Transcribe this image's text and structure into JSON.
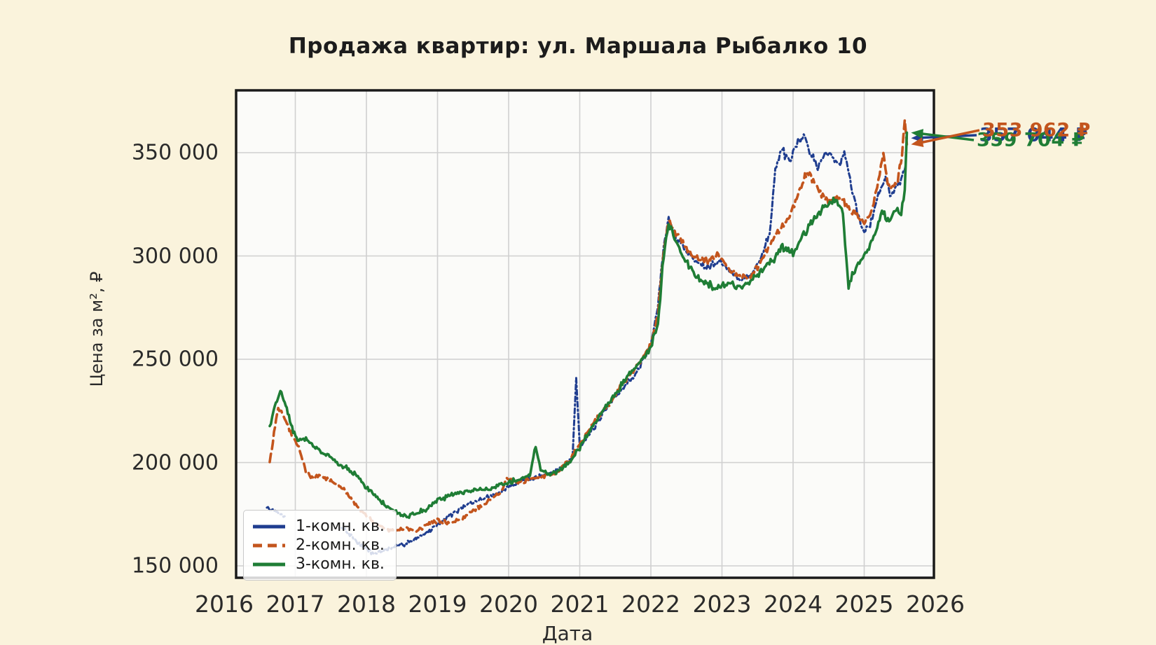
{
  "title": "Продажа квартир: ул. Маршала Рыбалко 10",
  "colors": {
    "page_background": "#faf3dc",
    "plot_background": "#fbfbf9",
    "grid": "#d0d0d0",
    "axis_spine": "#1a1a1a",
    "tick_text": "#2a2a2a",
    "series_1room": "#1f3d8f",
    "series_2room": "#c3551d",
    "series_3room": "#1f7d35"
  },
  "chart_data": {
    "type": "line",
    "title": "Продажа квартир: ул. Маршала Рыбалко 10",
    "xlabel": "Дата",
    "ylabel": "Цена за м², ₽",
    "grid": true,
    "legend_position": "lower left",
    "xlim": [
      2016.17,
      2026.03
    ],
    "ylim": [
      144000,
      380000
    ],
    "x_ticks": [
      2016,
      2017,
      2018,
      2019,
      2020,
      2021,
      2022,
      2023,
      2024,
      2025,
      2026
    ],
    "y_ticks": {
      "values": [
        150000,
        200000,
        250000,
        300000,
        350000
      ],
      "labels": [
        "150 000",
        "200 000",
        "250 000",
        "300 000",
        "350 000"
      ]
    },
    "series": [
      {
        "name": "1-комн. кв.",
        "color": "#1f3d8f",
        "style": "dashdot",
        "last_price_label": "357 044 ₽",
        "points": [
          [
            2016.6,
            178000
          ],
          [
            2016.7,
            176500
          ],
          [
            2016.85,
            174000
          ],
          null,
          [
            2017.65,
            169000
          ],
          [
            2017.8,
            164000
          ],
          [
            2017.95,
            159000
          ],
          [
            2018.1,
            156000
          ],
          [
            2018.25,
            157500
          ],
          [
            2018.4,
            159000
          ],
          [
            2018.55,
            161000
          ],
          [
            2018.7,
            163500
          ],
          [
            2018.85,
            166000
          ],
          [
            2019.0,
            170000
          ],
          [
            2019.15,
            174000
          ],
          [
            2019.3,
            177000
          ],
          [
            2019.45,
            180000
          ],
          [
            2019.6,
            182000
          ],
          [
            2019.75,
            184000
          ],
          [
            2019.9,
            186000
          ],
          [
            2020.0,
            188000
          ],
          [
            2020.15,
            191000
          ],
          [
            2020.3,
            192000
          ],
          [
            2020.45,
            193500
          ],
          [
            2020.6,
            195000
          ],
          [
            2020.75,
            198000
          ],
          [
            2020.9,
            203000
          ],
          [
            2020.95,
            242000
          ],
          [
            2021.0,
            208000
          ],
          [
            2021.15,
            214000
          ],
          [
            2021.3,
            222000
          ],
          [
            2021.45,
            230000
          ],
          [
            2021.6,
            236000
          ],
          [
            2021.75,
            241000
          ],
          [
            2021.9,
            250000
          ],
          [
            2022.0,
            257000
          ],
          [
            2022.1,
            276000
          ],
          [
            2022.18,
            305000
          ],
          [
            2022.25,
            317000
          ],
          [
            2022.35,
            310000
          ],
          [
            2022.5,
            302000
          ],
          [
            2022.65,
            297000
          ],
          [
            2022.8,
            295000
          ],
          [
            2022.95,
            298000
          ],
          [
            2023.1,
            293000
          ],
          [
            2023.25,
            288000
          ],
          [
            2023.4,
            291000
          ],
          [
            2023.55,
            299000
          ],
          [
            2023.67,
            311000
          ],
          [
            2023.75,
            342000
          ],
          [
            2023.85,
            352000
          ],
          [
            2023.95,
            344000
          ],
          [
            2024.05,
            354000
          ],
          [
            2024.15,
            358000
          ],
          [
            2024.25,
            350000
          ],
          [
            2024.35,
            343000
          ],
          [
            2024.45,
            350000
          ],
          [
            2024.55,
            348000
          ],
          [
            2024.65,
            344000
          ],
          [
            2024.72,
            351000
          ],
          [
            2024.8,
            337000
          ],
          [
            2024.9,
            322000
          ],
          [
            2025.0,
            312000
          ],
          [
            2025.1,
            317000
          ],
          [
            2025.2,
            330000
          ],
          [
            2025.3,
            338000
          ],
          [
            2025.38,
            329000
          ],
          [
            2025.45,
            333000
          ],
          [
            2025.52,
            336000
          ],
          [
            2025.58,
            345000
          ],
          [
            2025.6,
            357044
          ]
        ]
      },
      {
        "name": "2-комн. кв.",
        "color": "#c3551d",
        "style": "dashed",
        "last_price_label": "353 962 ₽",
        "points": [
          [
            2016.64,
            200000
          ],
          [
            2016.7,
            214000
          ],
          [
            2016.76,
            227000
          ],
          [
            2016.85,
            221000
          ],
          [
            2016.95,
            214000
          ],
          [
            2017.05,
            207000
          ],
          [
            2017.15,
            196000
          ],
          [
            2017.25,
            192500
          ],
          [
            2017.35,
            194000
          ],
          [
            2017.5,
            191500
          ],
          [
            2017.65,
            188000
          ],
          [
            2017.8,
            182000
          ],
          [
            2017.95,
            176000
          ],
          [
            2018.1,
            171000
          ],
          [
            2018.25,
            168000
          ],
          [
            2018.4,
            166500
          ],
          [
            2018.55,
            168500
          ],
          [
            2018.7,
            167000
          ],
          [
            2018.85,
            170000
          ],
          [
            2019.0,
            172000
          ],
          [
            2019.15,
            170500
          ],
          [
            2019.3,
            172000
          ],
          [
            2019.45,
            175000
          ],
          [
            2019.6,
            179000
          ],
          [
            2019.75,
            182000
          ],
          [
            2019.9,
            186000
          ],
          [
            2019.97,
            193000
          ],
          [
            2020.1,
            190000
          ],
          [
            2020.25,
            191500
          ],
          [
            2020.4,
            193000
          ],
          [
            2020.55,
            193500
          ],
          [
            2020.7,
            196000
          ],
          [
            2020.85,
            201000
          ],
          [
            2021.0,
            209000
          ],
          [
            2021.15,
            217000
          ],
          [
            2021.3,
            224000
          ],
          [
            2021.45,
            230000
          ],
          [
            2021.6,
            238000
          ],
          [
            2021.75,
            245000
          ],
          [
            2021.9,
            251000
          ],
          [
            2022.0,
            257000
          ],
          [
            2022.1,
            272000
          ],
          [
            2022.18,
            302000
          ],
          [
            2022.25,
            317000
          ],
          [
            2022.35,
            311000
          ],
          [
            2022.5,
            304000
          ],
          [
            2022.65,
            299000
          ],
          [
            2022.8,
            298000
          ],
          [
            2022.95,
            301000
          ],
          [
            2023.1,
            294000
          ],
          [
            2023.25,
            289000
          ],
          [
            2023.4,
            291000
          ],
          [
            2023.55,
            297000
          ],
          [
            2023.7,
            307000
          ],
          [
            2023.85,
            314000
          ],
          [
            2024.0,
            323000
          ],
          [
            2024.1,
            333000
          ],
          [
            2024.2,
            340000
          ],
          [
            2024.3,
            336000
          ],
          [
            2024.4,
            330000
          ],
          [
            2024.5,
            326000
          ],
          [
            2024.6,
            329000
          ],
          [
            2024.7,
            327000
          ],
          [
            2024.8,
            322000
          ],
          [
            2024.9,
            319000
          ],
          [
            2025.0,
            316000
          ],
          [
            2025.1,
            321000
          ],
          [
            2025.2,
            337000
          ],
          [
            2025.27,
            349000
          ],
          [
            2025.33,
            335000
          ],
          [
            2025.4,
            332000
          ],
          [
            2025.47,
            336000
          ],
          [
            2025.53,
            350000
          ],
          [
            2025.57,
            367000
          ],
          [
            2025.6,
            353962
          ]
        ]
      },
      {
        "name": "3-комн. кв.",
        "color": "#1f7d35",
        "style": "solid",
        "last_price_label": "359 704 ₽",
        "points": [
          [
            2016.64,
            217000
          ],
          [
            2016.71,
            227000
          ],
          [
            2016.79,
            235000
          ],
          [
            2016.88,
            226000
          ],
          [
            2016.97,
            215000
          ],
          [
            2017.05,
            210000
          ],
          [
            2017.15,
            212000
          ],
          [
            2017.25,
            208000
          ],
          [
            2017.38,
            205000
          ],
          [
            2017.5,
            202000
          ],
          [
            2017.62,
            199000
          ],
          [
            2017.75,
            197000
          ],
          [
            2017.88,
            193000
          ],
          [
            2018.0,
            188000
          ],
          [
            2018.12,
            184000
          ],
          [
            2018.25,
            180000
          ],
          [
            2018.4,
            176500
          ],
          [
            2018.55,
            174000
          ],
          [
            2018.7,
            175500
          ],
          [
            2018.85,
            177500
          ],
          [
            2018.95,
            181000
          ],
          [
            2019.1,
            183000
          ],
          [
            2019.25,
            185000
          ],
          [
            2019.4,
            186000
          ],
          [
            2019.55,
            186500
          ],
          [
            2019.7,
            187000
          ],
          [
            2019.85,
            188500
          ],
          [
            2020.0,
            190500
          ],
          [
            2020.15,
            192000
          ],
          [
            2020.3,
            194000
          ],
          [
            2020.38,
            208000
          ],
          [
            2020.45,
            196000
          ],
          [
            2020.6,
            194500
          ],
          [
            2020.75,
            197000
          ],
          [
            2020.9,
            202000
          ],
          [
            2021.0,
            207000
          ],
          [
            2021.15,
            216000
          ],
          [
            2021.3,
            224000
          ],
          [
            2021.45,
            231000
          ],
          [
            2021.6,
            238000
          ],
          [
            2021.75,
            245000
          ],
          [
            2021.9,
            251000
          ],
          [
            2022.0,
            256000
          ],
          [
            2022.1,
            268000
          ],
          [
            2022.18,
            300000
          ],
          [
            2022.25,
            316000
          ],
          [
            2022.35,
            306000
          ],
          [
            2022.5,
            297000
          ],
          [
            2022.65,
            290000
          ],
          [
            2022.8,
            286000
          ],
          [
            2022.95,
            284000
          ],
          [
            2023.1,
            287000
          ],
          [
            2023.25,
            284500
          ],
          [
            2023.4,
            288000
          ],
          [
            2023.55,
            293000
          ],
          [
            2023.7,
            297000
          ],
          [
            2023.85,
            304000
          ],
          [
            2024.0,
            301000
          ],
          [
            2024.15,
            310000
          ],
          [
            2024.3,
            318000
          ],
          [
            2024.45,
            324000
          ],
          [
            2024.6,
            327000
          ],
          [
            2024.7,
            321000
          ],
          [
            2024.78,
            284000
          ],
          [
            2024.85,
            292000
          ],
          [
            2024.95,
            298000
          ],
          [
            2025.05,
            303000
          ],
          [
            2025.15,
            311000
          ],
          [
            2025.25,
            321000
          ],
          [
            2025.35,
            317000
          ],
          [
            2025.45,
            323000
          ],
          [
            2025.52,
            320000
          ],
          [
            2025.57,
            332000
          ],
          [
            2025.6,
            359704
          ]
        ]
      }
    ]
  }
}
